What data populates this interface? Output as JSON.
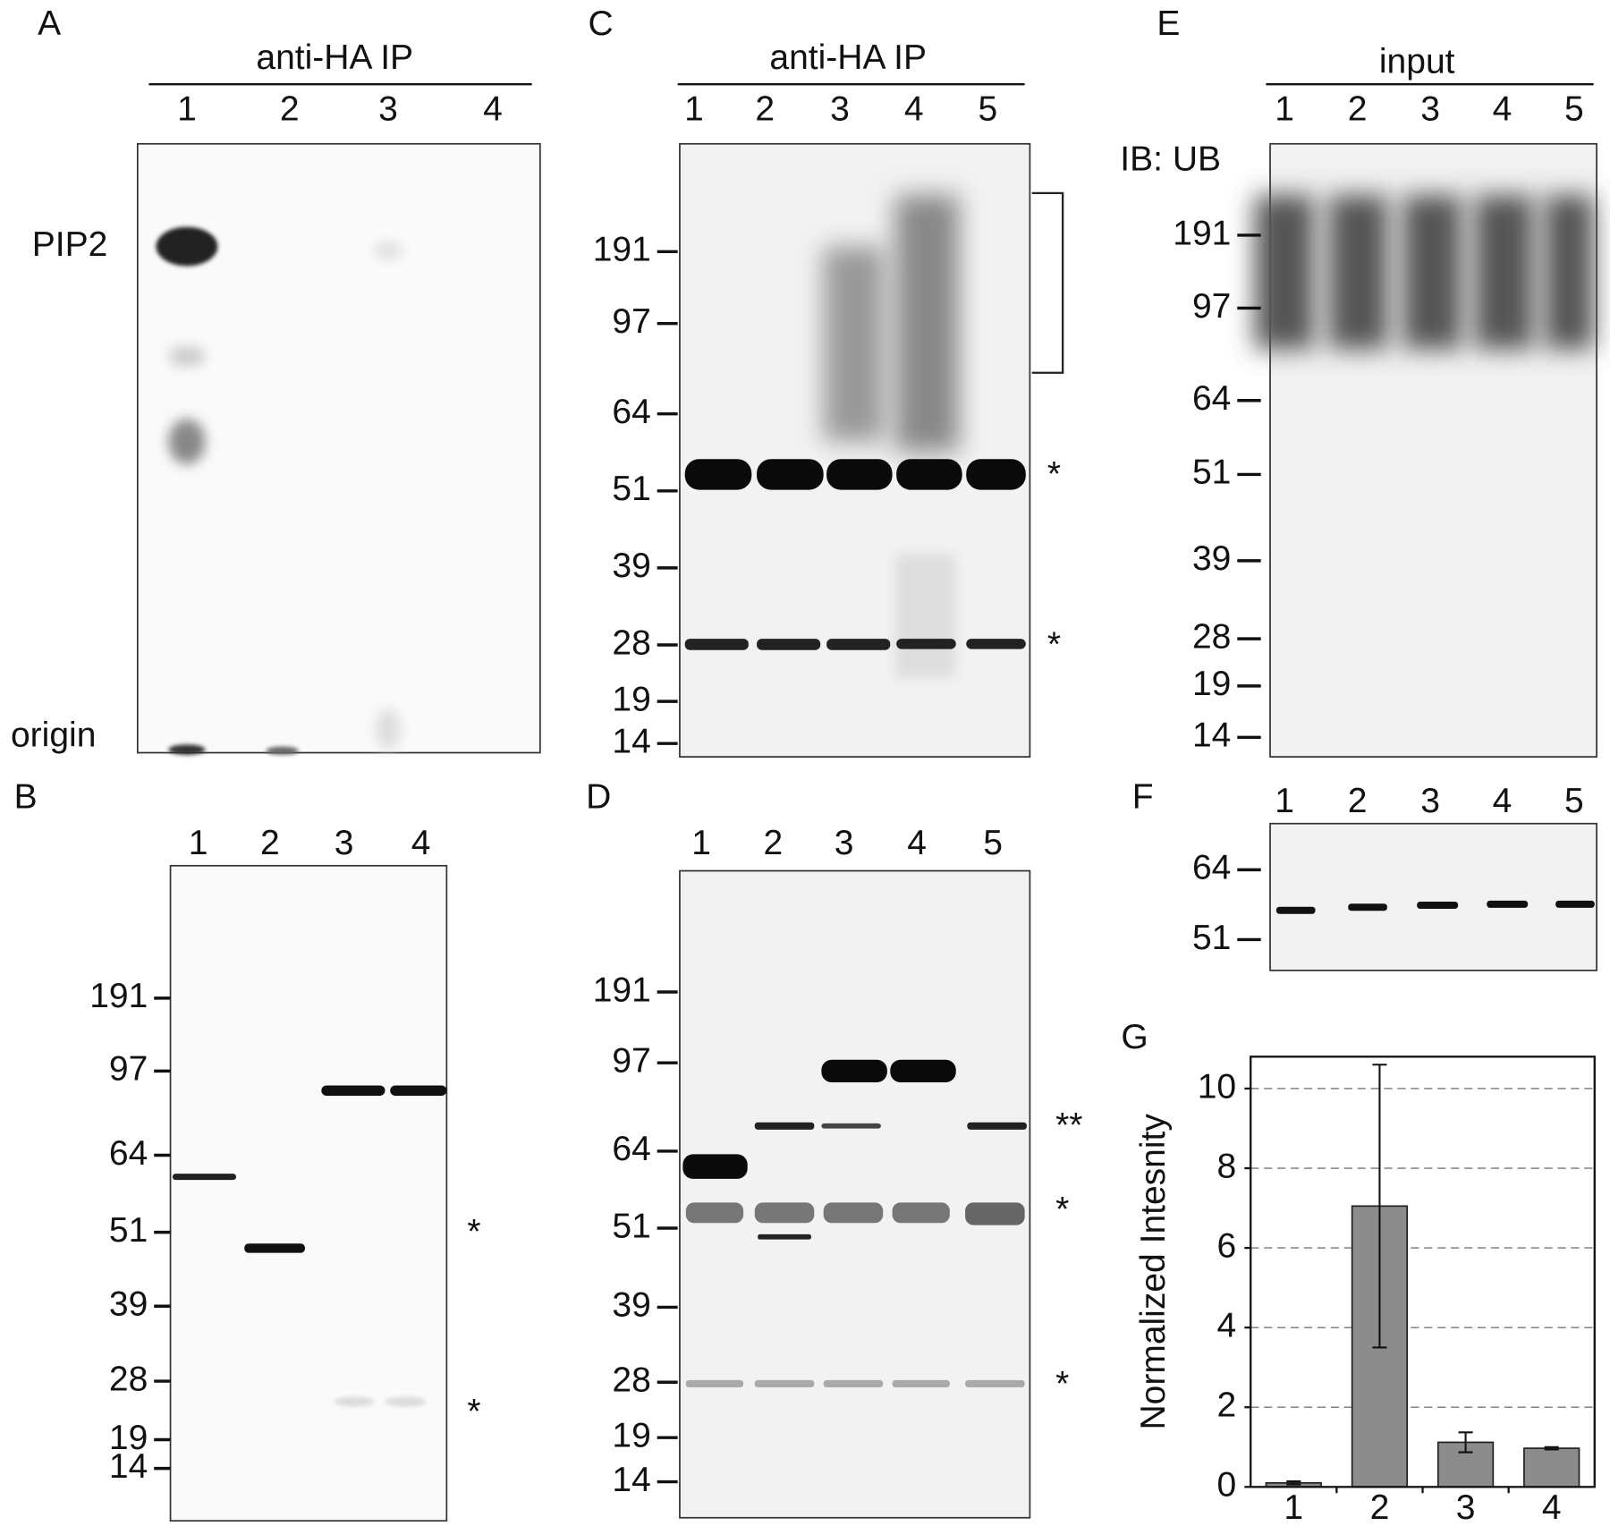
{
  "panels": [
    {
      "label": "A",
      "header": "anti-HA IP",
      "lanes": [
        "1",
        "2",
        "3",
        "4"
      ],
      "side_labels": [
        "PIP2",
        "origin"
      ]
    },
    {
      "label": "B",
      "lanes": [
        "1",
        "2",
        "3",
        "4"
      ],
      "markers": [
        "191",
        "97",
        "64",
        "51",
        "39",
        "28",
        "19",
        "14"
      ],
      "annotations": [
        "*",
        "*"
      ]
    },
    {
      "label": "C",
      "header": "anti-HA IP",
      "lanes": [
        "1",
        "2",
        "3",
        "4",
        "5"
      ],
      "markers": [
        "191",
        "97",
        "64",
        "51",
        "39",
        "28",
        "19",
        "14"
      ],
      "annotations": [
        "*",
        "*"
      ]
    },
    {
      "label": "D",
      "lanes": [
        "1",
        "2",
        "3",
        "4",
        "5"
      ],
      "markers": [
        "191",
        "97",
        "64",
        "51",
        "39",
        "28",
        "19",
        "14"
      ],
      "annotations": [
        "**",
        "*",
        "*"
      ]
    },
    {
      "label": "E",
      "header": "input",
      "lanes": [
        "1",
        "2",
        "3",
        "4",
        "5"
      ],
      "side_labels": [
        "IB: UB"
      ],
      "markers": [
        "191",
        "97",
        "64",
        "51",
        "39",
        "28",
        "19",
        "14"
      ]
    },
    {
      "label": "F",
      "lanes": [
        "1",
        "2",
        "3",
        "4",
        "5"
      ],
      "markers": [
        "64",
        "51"
      ]
    }
  ],
  "chart_data": {
    "type": "bar",
    "label": "G",
    "y_label": "Normalized Intesnity",
    "categories": [
      "1",
      "2",
      "3",
      "4"
    ],
    "values": [
      0.1,
      7.05,
      1.12,
      0.97
    ],
    "errors": [
      0.04,
      3.55,
      0.25,
      0.03
    ],
    "color": "#8c8c8c",
    "ylim": [
      0,
      10.8
    ],
    "yticks": [
      0,
      2,
      4,
      6,
      8,
      10
    ],
    "grid": true
  }
}
